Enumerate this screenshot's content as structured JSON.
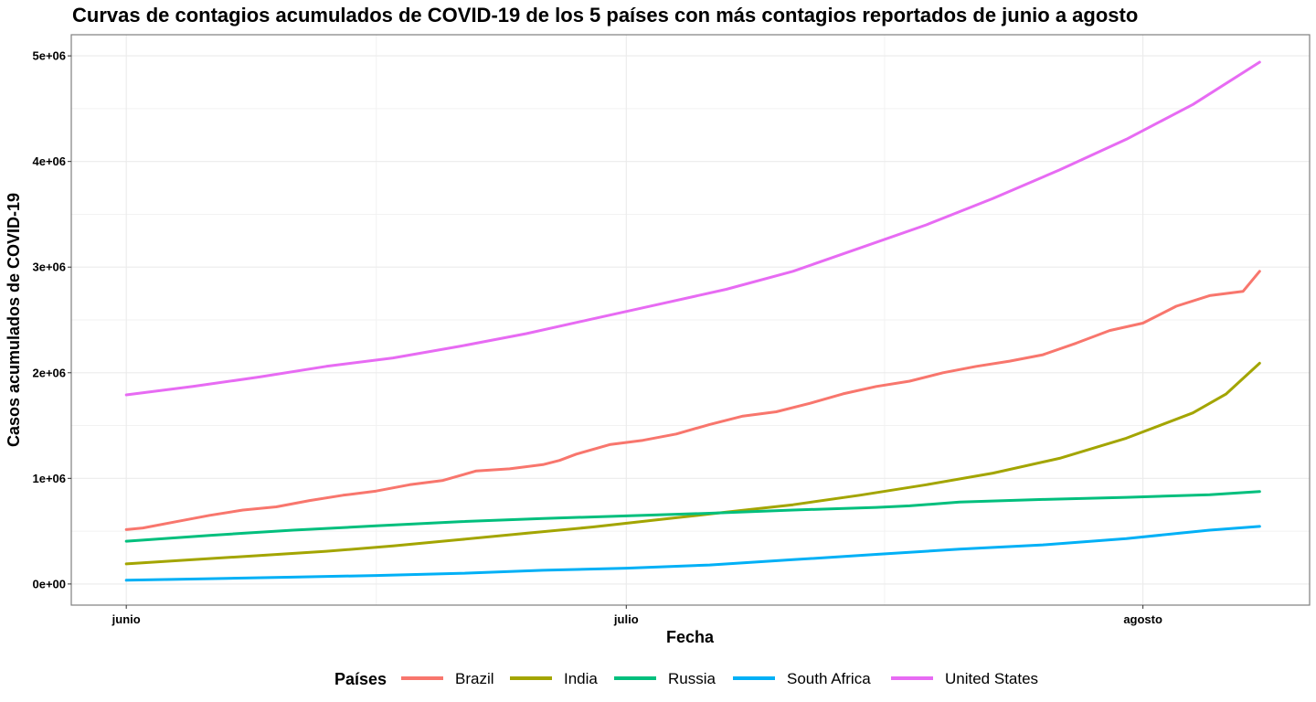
{
  "chart_data": {
    "type": "line",
    "title": "Curvas de contagios acumulados de COVID-19 de los 5 países con más contagios reportados de junio a agosto",
    "xlabel": "Fecha",
    "ylabel": "Casos acumulados de COVID-19",
    "x_ticks": [
      {
        "day": 0,
        "label": "junio"
      },
      {
        "day": 30,
        "label": "julio"
      },
      {
        "day": 61,
        "label": "agosto"
      }
    ],
    "x_range": [
      -3.3,
      71
    ],
    "ylim": [
      -200000,
      5200000
    ],
    "y_ticks": [
      {
        "value": 0,
        "label": "0e+00"
      },
      {
        "value": 1000000,
        "label": "1e+06"
      },
      {
        "value": 2000000,
        "label": "2e+06"
      },
      {
        "value": 3000000,
        "label": "3e+06"
      },
      {
        "value": 4000000,
        "label": "4e+06"
      },
      {
        "value": 5000000,
        "label": "5e+06"
      }
    ],
    "grid": true,
    "legend_position": "bottom",
    "legend_title": "Países",
    "series": [
      {
        "name": "Brazil",
        "color": "#F8766D",
        "x": [
          0,
          1,
          3,
          5,
          7,
          9,
          11,
          13,
          15,
          17,
          19,
          21,
          23,
          25,
          26,
          27,
          29,
          31,
          33,
          35,
          37,
          39,
          41,
          43,
          45,
          47,
          49,
          51,
          53,
          55,
          57,
          59,
          61,
          63,
          65,
          67,
          68
        ],
        "y": [
          515000,
          530000,
          590000,
          650000,
          700000,
          730000,
          790000,
          840000,
          880000,
          940000,
          980000,
          1070000,
          1090000,
          1130000,
          1170000,
          1230000,
          1320000,
          1360000,
          1420000,
          1510000,
          1590000,
          1630000,
          1710000,
          1800000,
          1870000,
          1920000,
          2000000,
          2060000,
          2110000,
          2170000,
          2280000,
          2400000,
          2470000,
          2630000,
          2730000,
          2770000,
          2960000
        ]
      },
      {
        "name": "India",
        "color": "#A3A500",
        "x": [
          0,
          4,
          8,
          12,
          16,
          20,
          24,
          28,
          32,
          36,
          40,
          44,
          48,
          52,
          56,
          60,
          64,
          66,
          68
        ],
        "y": [
          190000,
          230000,
          270000,
          310000,
          360000,
          420000,
          480000,
          540000,
          610000,
          680000,
          750000,
          840000,
          940000,
          1050000,
          1190000,
          1380000,
          1620000,
          1800000,
          2090000
        ]
      },
      {
        "name": "Russia",
        "color": "#00BF7D",
        "x": [
          0,
          5,
          10,
          15,
          20,
          25,
          30,
          35,
          40,
          45,
          47,
          50,
          55,
          60,
          65,
          68
        ],
        "y": [
          405000,
          460000,
          510000,
          550000,
          590000,
          620000,
          645000,
          670000,
          700000,
          725000,
          740000,
          775000,
          800000,
          820000,
          845000,
          875000
        ]
      },
      {
        "name": "South Africa",
        "color": "#00B0F6",
        "x": [
          0,
          5,
          10,
          15,
          20,
          25,
          30,
          35,
          40,
          45,
          50,
          55,
          60,
          65,
          68
        ],
        "y": [
          35000,
          50000,
          65000,
          80000,
          100000,
          130000,
          150000,
          180000,
          230000,
          280000,
          330000,
          370000,
          430000,
          510000,
          545000
        ]
      },
      {
        "name": "United States",
        "color": "#E76BF3",
        "x": [
          0,
          4,
          8,
          12,
          16,
          20,
          24,
          28,
          32,
          36,
          40,
          44,
          48,
          52,
          56,
          60,
          64,
          68
        ],
        "y": [
          1790000,
          1870000,
          1960000,
          2060000,
          2140000,
          2250000,
          2370000,
          2510000,
          2650000,
          2790000,
          2960000,
          3180000,
          3400000,
          3650000,
          3920000,
          4210000,
          4540000,
          4940000
        ]
      }
    ]
  }
}
